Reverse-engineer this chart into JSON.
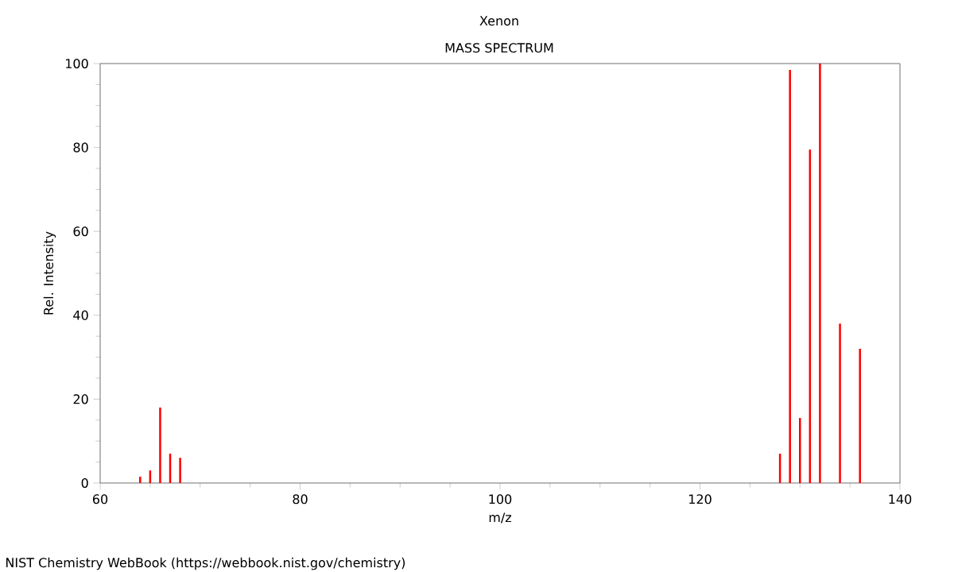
{
  "chart_data": {
    "type": "bar",
    "title": "Xenon",
    "subtitle": "MASS SPECTRUM",
    "xlabel": "m/z",
    "ylabel": "Rel. Intensity",
    "x": [
      64,
      65,
      66,
      67,
      68,
      128,
      129,
      130,
      131,
      132,
      134,
      136
    ],
    "values": [
      1.5,
      3,
      18,
      7,
      6,
      7,
      98.5,
      15.5,
      79.5,
      100,
      38,
      32
    ],
    "color": "#ff0000",
    "xlim": [
      60,
      140
    ],
    "xticks": [
      60,
      80,
      100,
      120,
      140
    ],
    "ylim": [
      0,
      100
    ],
    "yticks": [
      0,
      20,
      40,
      60,
      80,
      100
    ],
    "annotations": [
      "NIST Chemistry WebBook (https://webbook.nist.gov/chemistry)"
    ]
  }
}
